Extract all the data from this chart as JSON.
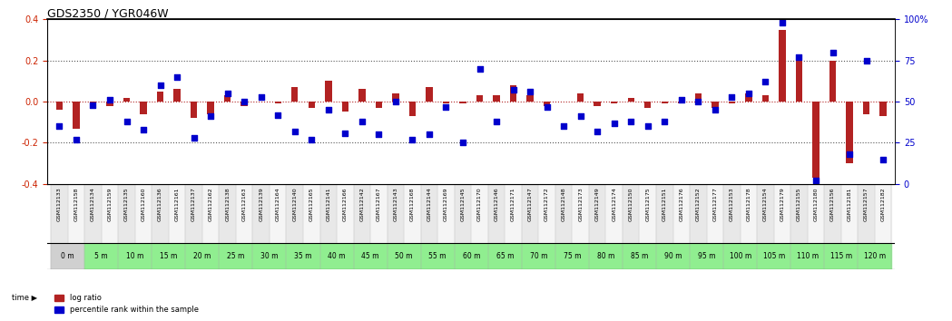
{
  "title": "GDS2350 / YGR046W",
  "samples": [
    "GSM112133",
    "GSM112158",
    "GSM112134",
    "GSM112159",
    "GSM112135",
    "GSM112160",
    "GSM112136",
    "GSM112161",
    "GSM112137",
    "GSM112162",
    "GSM112138",
    "GSM112163",
    "GSM112139",
    "GSM112164",
    "GSM112140",
    "GSM112165",
    "GSM112141",
    "GSM112166",
    "GSM112142",
    "GSM112167",
    "GSM112143",
    "GSM112168",
    "GSM112144",
    "GSM112169",
    "GSM112145",
    "GSM112170",
    "GSM112146",
    "GSM112171",
    "GSM112147",
    "GSM112172",
    "GSM112148",
    "GSM112173",
    "GSM112149",
    "GSM112174",
    "GSM112150",
    "GSM112175",
    "GSM112151",
    "GSM112176",
    "GSM112152",
    "GSM112177",
    "GSM112153",
    "GSM112178",
    "GSM112154",
    "GSM112179",
    "GSM112155",
    "GSM112180",
    "GSM112156",
    "GSM112181",
    "GSM112157",
    "GSM112182"
  ],
  "time_labels": [
    "0 m",
    "5 m",
    "10 m",
    "15 m",
    "20 m",
    "25 m",
    "30 m",
    "35 m",
    "40 m",
    "45 m",
    "50 m",
    "55 m",
    "60 m",
    "65 m",
    "70 m",
    "75 m",
    "80 m",
    "85 m",
    "90 m",
    "95 m",
    "100 m",
    "105 m",
    "110 m",
    "115 m",
    "120 m"
  ],
  "log_ratio": [
    -0.04,
    -0.13,
    -0.02,
    -0.02,
    0.02,
    -0.06,
    0.05,
    0.06,
    -0.08,
    -0.06,
    0.03,
    -0.02,
    0.0,
    -0.01,
    0.07,
    -0.03,
    0.1,
    -0.05,
    0.06,
    -0.03,
    0.04,
    -0.07,
    0.07,
    -0.01,
    -0.01,
    0.03,
    0.03,
    0.08,
    0.03,
    -0.02,
    0.0,
    0.04,
    -0.02,
    -0.01,
    0.02,
    -0.03,
    -0.01,
    -0.01,
    0.04,
    -0.03,
    -0.01,
    0.04,
    0.03,
    0.35,
    0.22,
    -0.37,
    0.2,
    -0.3,
    -0.06,
    -0.07
  ],
  "percentile_rank": [
    35,
    27,
    48,
    51,
    38,
    33,
    60,
    65,
    28,
    41,
    55,
    50,
    53,
    42,
    32,
    27,
    45,
    31,
    38,
    30,
    50,
    27,
    30,
    47,
    25,
    70,
    38,
    57,
    56,
    47,
    35,
    41,
    32,
    37,
    38,
    35,
    38,
    51,
    50,
    45,
    53,
    55,
    62,
    98,
    77,
    2,
    80,
    18,
    75,
    15
  ],
  "ylim": [
    -0.4,
    0.4
  ],
  "yticks": [
    -0.4,
    -0.2,
    0.0,
    0.2,
    0.4
  ],
  "right_yticks": [
    0,
    25,
    50,
    75,
    100
  ],
  "bar_color": "#b22222",
  "scatter_color": "#0000cc",
  "dotted_line_color": "#555555",
  "bg_color": "#ffffff",
  "time_row_colors": [
    "#d0d0d0",
    "#90ee90"
  ],
  "bar_width": 0.4,
  "scatter_size": 15
}
